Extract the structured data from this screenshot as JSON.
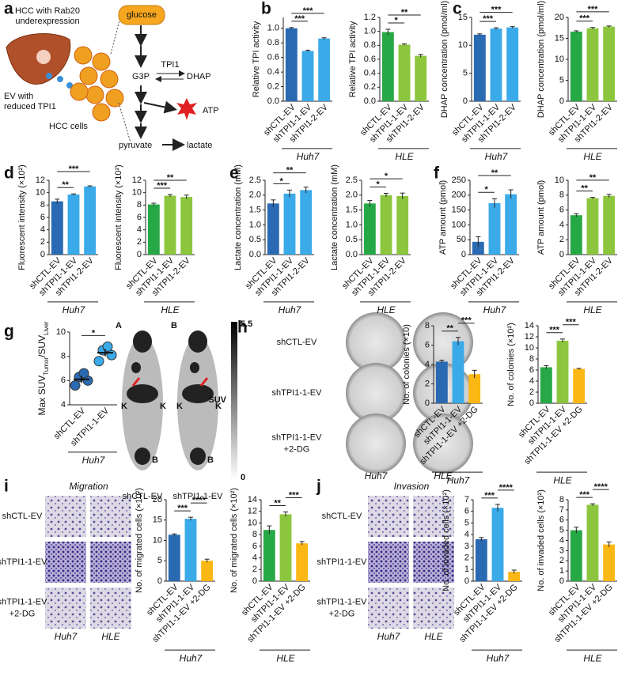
{
  "panel_labels": [
    "a",
    "b",
    "c",
    "d",
    "e",
    "f",
    "g",
    "h",
    "i",
    "j"
  ],
  "diagram": {
    "liver_label": [
      "HCC with Rab20",
      "underexpression"
    ],
    "ev_label": [
      "EV with",
      "reduced TPI1"
    ],
    "cells_label": "HCC cells",
    "glucose": "glucose",
    "g3p": "G3P",
    "enzyme": "TPI1",
    "dhap": "DHAP",
    "atp": "ATP",
    "pyruvate": "pyruvate",
    "lactate": "lactate"
  },
  "pet": {
    "images": [
      {
        "letter": "A",
        "organs": [
          "K",
          "K",
          "B"
        ],
        "caption": "shCTL-EV"
      },
      {
        "letter": "B",
        "organs": [
          "K",
          "K",
          "B"
        ],
        "caption": "shTPI1-1-EV"
      }
    ],
    "scale_max": "5.5",
    "scale_label": "SUV",
    "scale_min": "0"
  },
  "colony": {
    "rows": [
      [
        "shCTL-EV"
      ],
      [
        "shTPI1-1-EV"
      ],
      [
        "shTPI1-1-EV",
        "+2-DG"
      ]
    ],
    "columns": [
      "Huh7",
      "HLE"
    ]
  },
  "migration": {
    "title": "Migration",
    "rows": [
      [
        "shCTL-EV"
      ],
      [
        "shTPI1-1-EV"
      ],
      [
        "shTPI1-1-EV",
        "+2-DG"
      ]
    ],
    "columns": [
      "Huh7",
      "HLE"
    ]
  },
  "invasion": {
    "title": "Invasion",
    "rows": [
      [
        "shCTL-EV"
      ],
      [
        "shTPI1-1-EV"
      ],
      [
        "shTPI1-1-EV",
        "+2-DG"
      ]
    ],
    "columns": [
      "Huh7",
      "HLE"
    ]
  },
  "chart_data": [
    {
      "type": "bar",
      "ylabel": "Relative TPI activity",
      "xlabel": "Huh7",
      "categories": [
        "shCTL-EV",
        "shTPI1-1-EV",
        "shTPI1-2-EV"
      ],
      "values": [
        1.0,
        0.69,
        0.86
      ],
      "errors": [
        0.01,
        0.01,
        0.01
      ],
      "colors": [
        "#2a6ab3",
        "#3aaae8",
        "#3aaae8"
      ],
      "ylim": [
        0,
        1.15
      ],
      "yticks": [
        {
          "value": 0,
          "label": "0.0"
        },
        {
          "value": 0.2,
          "label": "0.2"
        },
        {
          "value": 0.4,
          "label": "0.4"
        },
        {
          "value": 0.6,
          "label": "0.6"
        },
        {
          "value": 0.8,
          "label": "0.8"
        },
        {
          "value": 1,
          "label": "1.0"
        }
      ],
      "comparisons": [
        {
          "groups": [
            0,
            1
          ],
          "label": "***"
        },
        {
          "groups": [
            0,
            2
          ],
          "label": "***"
        }
      ]
    },
    {
      "type": "bar",
      "ylabel": "Relative TPI activity",
      "xlabel": "HLE",
      "categories": [
        "shCTL-EV",
        "shTPI1-1-EV",
        "shTPI1-2-EV"
      ],
      "values": [
        0.99,
        0.81,
        0.65
      ],
      "errors": [
        0.04,
        0.01,
        0.02
      ],
      "colors": [
        "#27a846",
        "#8cc63e",
        "#8cc63e"
      ],
      "ylim": [
        0,
        1.2
      ],
      "yticks": [
        {
          "value": 0,
          "label": "0.0"
        },
        {
          "value": 0.2,
          "label": "0.2"
        },
        {
          "value": 0.4,
          "label": "0.4"
        },
        {
          "value": 0.6,
          "label": "0.6"
        },
        {
          "value": 0.8,
          "label": "0.8"
        },
        {
          "value": 1,
          "label": "1.0"
        },
        {
          "value": 1.2,
          "label": "1.2"
        }
      ],
      "comparisons": [
        {
          "groups": [
            0,
            1
          ],
          "label": "*"
        },
        {
          "groups": [
            0,
            2
          ],
          "label": "**"
        }
      ]
    },
    {
      "type": "bar",
      "ylabel": "DHAP concentration (pmol/ml)",
      "xlabel": "Huh7",
      "categories": [
        "shCTL-EV",
        "shTPI1-1-EV",
        "shTPI1-2-EV"
      ],
      "values": [
        11.9,
        13.0,
        13.2
      ],
      "errors": [
        0.15,
        0.15,
        0.15
      ],
      "colors": [
        "#2a6ab3",
        "#3aaae8",
        "#3aaae8"
      ],
      "ylim": [
        0,
        15
      ],
      "yticks": [
        0,
        5,
        10,
        15
      ],
      "comparisons": [
        {
          "groups": [
            0,
            1
          ],
          "label": "***"
        },
        {
          "groups": [
            0,
            2
          ],
          "label": "***"
        }
      ]
    },
    {
      "type": "bar",
      "ylabel": "DHAP concentration (pmol/ml)",
      "xlabel": "HLE",
      "categories": [
        "shCTL-EV",
        "shTPI1-1-EV",
        "shTPI1-2-EV"
      ],
      "values": [
        16.6,
        17.4,
        17.8
      ],
      "errors": [
        0.2,
        0.2,
        0.15
      ],
      "colors": [
        "#27a846",
        "#8cc63e",
        "#8cc63e"
      ],
      "ylim": [
        0,
        20
      ],
      "yticks": [
        0,
        5,
        10,
        15,
        20
      ],
      "comparisons": [
        {
          "groups": [
            0,
            1
          ],
          "label": "***"
        },
        {
          "groups": [
            0,
            2
          ],
          "label": "***"
        }
      ]
    },
    {
      "type": "bar",
      "ylabel": "Fluorescent intensity (×10²)",
      "xlabel": "Huh7",
      "categories": [
        "shCTL-EV",
        "shTPI1-1-EV",
        "shTPI1-2-EV"
      ],
      "values": [
        8.6,
        9.7,
        11.0
      ],
      "errors": [
        0.35,
        0.1,
        0.1
      ],
      "colors": [
        "#2a6ab3",
        "#3aaae8",
        "#3aaae8"
      ],
      "ylim": [
        0,
        12
      ],
      "yticks": [
        0,
        2,
        4,
        6,
        8,
        10,
        12
      ],
      "comparisons": [
        {
          "groups": [
            0,
            1
          ],
          "label": "**"
        },
        {
          "groups": [
            0,
            2
          ],
          "label": "***"
        }
      ]
    },
    {
      "type": "bar",
      "ylabel": "Fluorescent intensity (×10²)",
      "xlabel": "HLE",
      "categories": [
        "shCTL-EV",
        "shTPI1-1-EV",
        "shTPI1-2-EV"
      ],
      "values": [
        8.1,
        9.5,
        9.3
      ],
      "errors": [
        0.2,
        0.2,
        0.3
      ],
      "colors": [
        "#27a846",
        "#8cc63e",
        "#8cc63e"
      ],
      "ylim": [
        0,
        12
      ],
      "yticks": [
        0,
        2,
        4,
        6,
        8,
        10,
        12
      ],
      "comparisons": [
        {
          "groups": [
            0,
            1
          ],
          "label": "***"
        },
        {
          "groups": [
            0,
            2
          ],
          "label": "**"
        }
      ]
    },
    {
      "type": "bar",
      "ylabel": "Lactate concentration (mM)",
      "xlabel": "Huh7",
      "categories": [
        "shCTL-EV",
        "shTPI1-1-EV",
        "shTPI1-2-EV"
      ],
      "values": [
        1.72,
        2.05,
        2.17
      ],
      "errors": [
        0.12,
        0.12,
        0.1
      ],
      "colors": [
        "#2a6ab3",
        "#3aaae8",
        "#3aaae8"
      ],
      "ylim": [
        0,
        2.5
      ],
      "yticks": [
        {
          "value": 0,
          "label": "0.0"
        },
        {
          "value": 0.5,
          "label": "0.5"
        },
        {
          "value": 1,
          "label": "1.0"
        },
        {
          "value": 1.5,
          "label": "1.5"
        },
        {
          "value": 2,
          "label": "2.0"
        },
        {
          "value": 2.5,
          "label": "2.5"
        }
      ],
      "comparisons": [
        {
          "groups": [
            0,
            1
          ],
          "label": "*"
        },
        {
          "groups": [
            0,
            2
          ],
          "label": "**"
        }
      ]
    },
    {
      "type": "bar",
      "ylabel": "Lactate concentration (mM)",
      "xlabel": "HLE",
      "categories": [
        "shCTL-EV",
        "shTPI1-1-EV",
        "shTPI1-2-EV"
      ],
      "values": [
        1.72,
        2.0,
        1.97
      ],
      "errors": [
        0.1,
        0.06,
        0.1
      ],
      "colors": [
        "#27a846",
        "#8cc63e",
        "#8cc63e"
      ],
      "ylim": [
        0,
        2.5
      ],
      "yticks": [
        {
          "value": 0,
          "label": "0.0"
        },
        {
          "value": 0.5,
          "label": "0.5"
        },
        {
          "value": 1,
          "label": "1.0"
        },
        {
          "value": 1.5,
          "label": "1.5"
        },
        {
          "value": 2,
          "label": "2.0"
        },
        {
          "value": 2.5,
          "label": "2.5"
        }
      ],
      "comparisons": [
        {
          "groups": [
            0,
            1
          ],
          "label": "*"
        },
        {
          "groups": [
            0,
            2
          ],
          "label": "*"
        }
      ]
    },
    {
      "type": "bar",
      "ylabel": "ATP amount (pmol)",
      "xlabel": "Huh7",
      "categories": [
        "shCTL-EV",
        "shTPI1-1-EV",
        "shTPI1-2-EV"
      ],
      "values": [
        43,
        173,
        203
      ],
      "errors": [
        17,
        15,
        15
      ],
      "colors": [
        "#2a6ab3",
        "#3aaae8",
        "#3aaae8"
      ],
      "ylim": [
        0,
        250
      ],
      "yticks": [
        0,
        50,
        100,
        150,
        200,
        250
      ],
      "comparisons": [
        {
          "groups": [
            0,
            1
          ],
          "label": "*"
        },
        {
          "groups": [
            0,
            2
          ],
          "label": "**"
        }
      ]
    },
    {
      "type": "bar",
      "ylabel": "ATP amount (pmol)",
      "xlabel": "HLE",
      "categories": [
        "shCTL-EV",
        "shTPI1-1-EV",
        "shTPI1-2-EV"
      ],
      "values": [
        5.3,
        7.6,
        7.9
      ],
      "errors": [
        0.2,
        0.1,
        0.2
      ],
      "colors": [
        "#27a846",
        "#8cc63e",
        "#8cc63e"
      ],
      "ylim": [
        0,
        10
      ],
      "yticks": [
        0,
        2,
        4,
        6,
        8,
        10
      ],
      "comparisons": [
        {
          "groups": [
            0,
            1
          ],
          "label": "**"
        },
        {
          "groups": [
            0,
            2
          ],
          "label": "**"
        }
      ]
    },
    {
      "type": "scatter",
      "ylabel": [
        "Max SUV",
        "Tumor",
        "/SUV",
        "Liver"
      ],
      "xlabel": "Huh7",
      "categories": [
        "shCTL-EV",
        "shTPI1-1-EV"
      ],
      "values": [
        [
          5.6,
          6.0,
          6.3,
          6.6
        ],
        [
          7.6,
          8.1,
          8.5,
          8.8
        ]
      ],
      "means": [
        6.1,
        8.3
      ],
      "errors": [
        0.3,
        0.3
      ],
      "colors": [
        "#2a6ab3",
        "#3aaae8"
      ],
      "ylim": [
        4,
        10
      ],
      "yticks": [
        4,
        6,
        8,
        10
      ],
      "comparisons": [
        {
          "groups": [
            0,
            1
          ],
          "label": "*"
        }
      ]
    },
    {
      "type": "bar",
      "ylabel": "No. of colonies (×10)",
      "xlabel": "Huh7",
      "categories": [
        "shCTL-EV",
        "shTPI1-1-EV",
        "shTPI1-1-EV +2-DG"
      ],
      "values": [
        4.3,
        6.4,
        3.0
      ],
      "errors": [
        0.15,
        0.4,
        0.4
      ],
      "colors": [
        "#2a6ab3",
        "#3aaae8",
        "#fbb714"
      ],
      "ylim": [
        0,
        8
      ],
      "yticks": [
        0,
        2,
        4,
        6,
        8
      ],
      "comparisons": [
        {
          "groups": [
            0,
            1
          ],
          "label": "**"
        },
        {
          "groups": [
            1,
            2
          ],
          "label": "***"
        }
      ]
    },
    {
      "type": "bar",
      "ylabel": "No. of colonies (×10²)",
      "xlabel": "HLE",
      "categories": [
        "shCTL-EV",
        "shTPI1-1-EV",
        "shTPI1-1-EV +2-DG"
      ],
      "values": [
        6.5,
        11.3,
        6.2
      ],
      "errors": [
        0.3,
        0.3,
        0.1
      ],
      "colors": [
        "#27a846",
        "#8cc63e",
        "#fbb714"
      ],
      "ylim": [
        0,
        14
      ],
      "yticks": [
        0,
        2,
        4,
        6,
        8,
        10,
        12,
        14
      ],
      "comparisons": [
        {
          "groups": [
            0,
            1
          ],
          "label": "***"
        },
        {
          "groups": [
            1,
            2
          ],
          "label": "***"
        }
      ]
    },
    {
      "type": "bar",
      "ylabel": "No. of migrated cells (×10²)",
      "xlabel": "Huh7",
      "categories": [
        "shCTL-EV",
        "shTPI1-1-EV",
        "shTPI1-1-EV +2-DG"
      ],
      "values": [
        11.4,
        15.3,
        5.0
      ],
      "errors": [
        0.2,
        0.4,
        0.4
      ],
      "colors": [
        "#2a6ab3",
        "#3aaae8",
        "#fbb714"
      ],
      "ylim": [
        0,
        20
      ],
      "yticks": [
        0,
        5,
        10,
        15,
        20
      ],
      "comparisons": [
        {
          "groups": [
            0,
            1
          ],
          "label": "***"
        },
        {
          "groups": [
            1,
            2
          ],
          "label": "****"
        }
      ]
    },
    {
      "type": "bar",
      "ylabel": "No. of migrated cells (×10²)",
      "xlabel": "HLE",
      "categories": [
        "shCTL-EV",
        "shTPI1-1-EV",
        "shTPI1-1-EV +2-DG"
      ],
      "values": [
        8.8,
        11.5,
        6.5
      ],
      "errors": [
        0.7,
        0.4,
        0.3
      ],
      "colors": [
        "#27a846",
        "#8cc63e",
        "#fbb714"
      ],
      "ylim": [
        0,
        14
      ],
      "yticks": [
        0,
        2,
        4,
        6,
        8,
        10,
        12,
        14
      ],
      "comparisons": [
        {
          "groups": [
            0,
            1
          ],
          "label": "**"
        },
        {
          "groups": [
            1,
            2
          ],
          "label": "***"
        }
      ]
    },
    {
      "type": "bar",
      "ylabel": "No. of invaded cells (×10²)",
      "xlabel": "Huh7",
      "categories": [
        "shCTL-EV",
        "shTPI1-1-EV",
        "shTPI1-1-EV +2-DG"
      ],
      "values": [
        3.6,
        6.3,
        0.8
      ],
      "errors": [
        0.15,
        0.3,
        0.15
      ],
      "colors": [
        "#2a6ab3",
        "#3aaae8",
        "#fbb714"
      ],
      "ylim": [
        0,
        7
      ],
      "yticks": [
        0,
        1,
        2,
        3,
        4,
        5,
        6,
        7
      ],
      "comparisons": [
        {
          "groups": [
            0,
            1
          ],
          "label": "***"
        },
        {
          "groups": [
            1,
            2
          ],
          "label": "****"
        }
      ]
    },
    {
      "type": "bar",
      "ylabel": "No. of invaded cells (×10²)",
      "xlabel": "HLE",
      "categories": [
        "shCTL-EV",
        "shTPI1-1-EV",
        "shTPI1-1-EV +2-DG"
      ],
      "values": [
        5.0,
        7.5,
        3.6
      ],
      "errors": [
        0.3,
        0.1,
        0.25
      ],
      "colors": [
        "#27a846",
        "#8cc63e",
        "#fbb714"
      ],
      "ylim": [
        0,
        8
      ],
      "yticks": [
        0,
        1,
        2,
        3,
        4,
        5,
        6,
        7,
        8
      ],
      "comparisons": [
        {
          "groups": [
            0,
            1
          ],
          "label": "***"
        },
        {
          "groups": [
            1,
            2
          ],
          "label": "****"
        }
      ]
    }
  ]
}
